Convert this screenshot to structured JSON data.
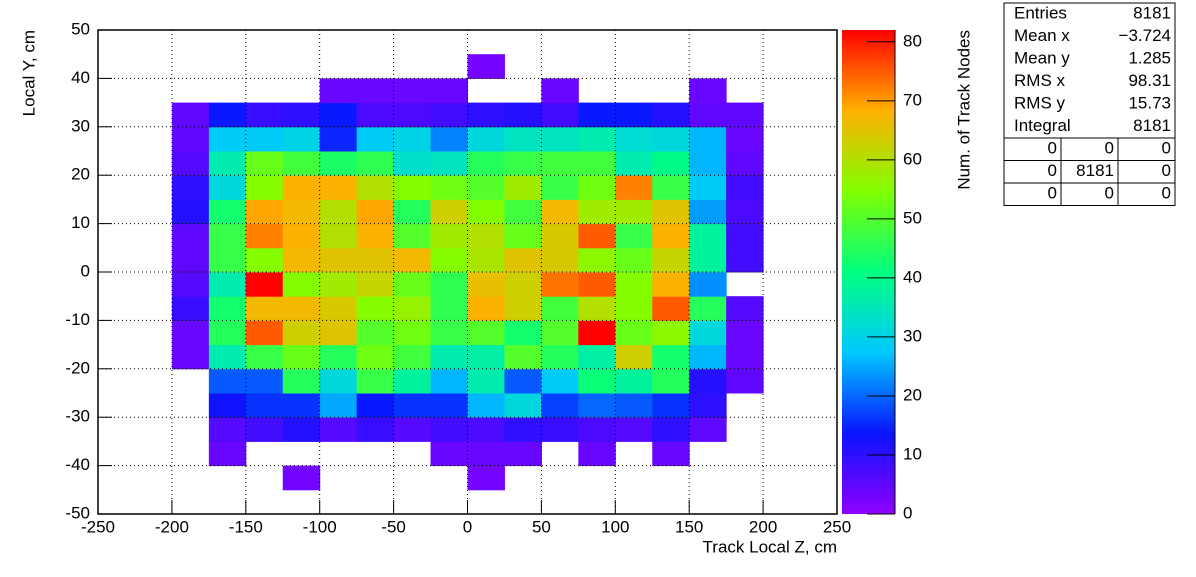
{
  "chart_data": {
    "type": "heatmap",
    "xlabel": "Track Local Z, cm",
    "ylabel": "Local Y, cm",
    "zlabel": "Num. of Track Nodes",
    "xbins": [
      -250,
      -225,
      -200,
      -175,
      -150,
      -125,
      -100,
      -75,
      -50,
      -25,
      0,
      25,
      50,
      75,
      100,
      125,
      150,
      175,
      200,
      225,
      250
    ],
    "ybins": [
      -50,
      -45,
      -40,
      -35,
      -30,
      -25,
      -20,
      -15,
      -10,
      -5,
      0,
      5,
      10,
      15,
      20,
      25,
      30,
      35,
      40,
      45,
      50
    ],
    "xlim": [
      -250,
      250
    ],
    "xticks": [
      -250,
      -200,
      -150,
      -100,
      -50,
      0,
      50,
      100,
      150,
      200,
      250
    ],
    "ylim": [
      -50,
      50
    ],
    "yticks": [
      -50,
      -40,
      -30,
      -20,
      -10,
      0,
      10,
      20,
      30,
      40,
      50
    ],
    "zlim": [
      0,
      82
    ],
    "zticks": [
      0,
      10,
      20,
      30,
      40,
      50,
      60,
      70,
      80
    ],
    "grid": true,
    "colors": [
      "#9000ff",
      "#0a14ff",
      "#00c8ff",
      "#00ff80",
      "#80ff00",
      "#ffb000",
      "#ff0000"
    ],
    "z": [
      [
        null,
        null,
        null,
        null,
        null,
        null,
        null,
        null,
        null,
        null,
        null,
        null,
        null,
        null,
        null,
        null,
        null,
        null,
        null,
        null
      ],
      [
        null,
        null,
        null,
        null,
        null,
        3,
        null,
        null,
        null,
        null,
        3,
        null,
        null,
        null,
        null,
        null,
        null,
        null,
        null,
        null
      ],
      [
        null,
        null,
        null,
        4,
        null,
        null,
        null,
        null,
        null,
        4,
        4,
        4,
        null,
        4,
        null,
        4,
        null,
        null,
        null,
        null
      ],
      [
        null,
        null,
        null,
        6,
        8,
        11,
        6,
        9,
        6,
        8,
        7,
        10,
        9,
        7,
        6,
        10,
        5,
        null,
        null,
        null
      ],
      [
        null,
        null,
        null,
        13,
        16,
        16,
        25,
        14,
        16,
        16,
        26,
        31,
        17,
        20,
        19,
        16,
        10,
        null,
        null,
        null
      ],
      [
        null,
        null,
        null,
        19,
        19,
        45,
        31,
        47,
        38,
        26,
        36,
        19,
        28,
        42,
        38,
        45,
        11,
        5,
        null,
        null
      ],
      [
        null,
        null,
        4,
        36,
        47,
        52,
        45,
        53,
        48,
        36,
        37,
        50,
        45,
        37,
        63,
        43,
        26,
        4,
        null,
        null
      ],
      [
        null,
        null,
        4,
        45,
        75,
        63,
        65,
        50,
        53,
        47,
        50,
        43,
        50,
        82,
        52,
        56,
        31,
        4,
        null,
        null
      ],
      [
        null,
        null,
        9,
        43,
        67,
        67,
        64,
        55,
        57,
        46,
        68,
        63,
        48,
        60,
        55,
        75,
        45,
        6,
        null,
        null
      ],
      [
        null,
        null,
        6,
        36,
        82,
        55,
        58,
        62,
        52,
        46,
        66,
        63,
        73,
        75,
        55,
        68,
        23,
        null,
        null,
        null
      ],
      [
        null,
        null,
        5,
        47,
        55,
        67,
        65,
        65,
        67,
        55,
        59,
        65,
        64,
        56,
        52,
        62,
        38,
        8,
        null,
        null
      ],
      [
        null,
        null,
        5,
        47,
        72,
        68,
        60,
        68,
        50,
        58,
        60,
        52,
        64,
        75,
        47,
        68,
        38,
        8,
        null,
        null
      ],
      [
        null,
        null,
        11,
        43,
        69,
        67,
        60,
        69,
        45,
        63,
        55,
        48,
        67,
        58,
        58,
        65,
        24,
        7,
        null,
        null
      ],
      [
        null,
        null,
        10,
        31,
        55,
        68,
        68,
        60,
        55,
        53,
        50,
        58,
        47,
        53,
        72,
        47,
        28,
        8,
        null,
        null
      ],
      [
        null,
        null,
        6,
        36,
        52,
        48,
        44,
        46,
        33,
        34,
        45,
        47,
        48,
        48,
        36,
        40,
        26,
        5,
        null,
        null
      ],
      [
        null,
        null,
        5,
        28,
        28,
        30,
        15,
        28,
        30,
        22,
        31,
        34,
        34,
        36,
        32,
        31,
        26,
        4,
        null,
        null
      ],
      [
        null,
        null,
        5,
        14,
        9,
        10,
        14,
        7,
        7,
        8,
        10,
        11,
        8,
        14,
        14,
        11,
        5,
        5,
        null,
        null
      ],
      [
        null,
        null,
        null,
        null,
        null,
        null,
        4,
        4,
        4,
        4,
        null,
        null,
        4,
        null,
        null,
        null,
        4,
        null,
        null,
        null
      ],
      [
        null,
        null,
        null,
        null,
        null,
        null,
        null,
        null,
        null,
        null,
        3,
        null,
        null,
        null,
        null,
        null,
        null,
        null,
        null,
        null
      ],
      [
        null,
        null,
        null,
        null,
        null,
        null,
        null,
        null,
        null,
        null,
        null,
        null,
        null,
        null,
        null,
        null,
        null,
        null,
        null,
        null
      ]
    ],
    "stats": {
      "rows": [
        [
          "Entries",
          "8181"
        ],
        [
          "Mean x",
          "−3.724"
        ],
        [
          "Mean y",
          "1.285"
        ],
        [
          "RMS x",
          "98.31"
        ],
        [
          "RMS y",
          "15.73"
        ],
        [
          "Integral",
          "8181"
        ]
      ],
      "grid": [
        [
          "0",
          "0",
          "0"
        ],
        [
          "0",
          "8181",
          "0"
        ],
        [
          "0",
          "0",
          "0"
        ]
      ]
    }
  }
}
